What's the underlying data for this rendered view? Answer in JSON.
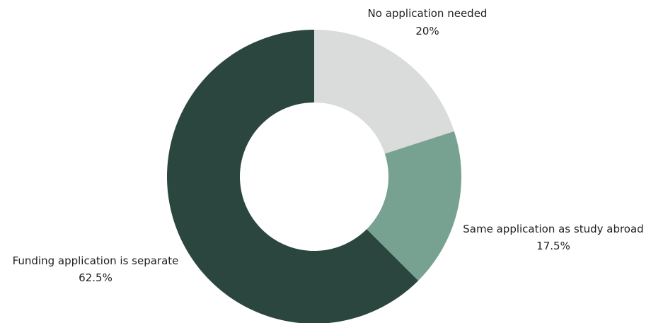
{
  "chart_data": {
    "type": "pie",
    "variant": "donut",
    "title": "",
    "slices": [
      {
        "label": "No application needed",
        "value": 20,
        "value_label": "20%",
        "color": "#d9dcda"
      },
      {
        "label": "Same application as study abroad",
        "value": 17.5,
        "value_label": "17.5%",
        "color": "#77a291"
      },
      {
        "label": "Funding application is separate",
        "value": 62.5,
        "value_label": "62.5%",
        "color": "#2b463e"
      }
    ]
  }
}
